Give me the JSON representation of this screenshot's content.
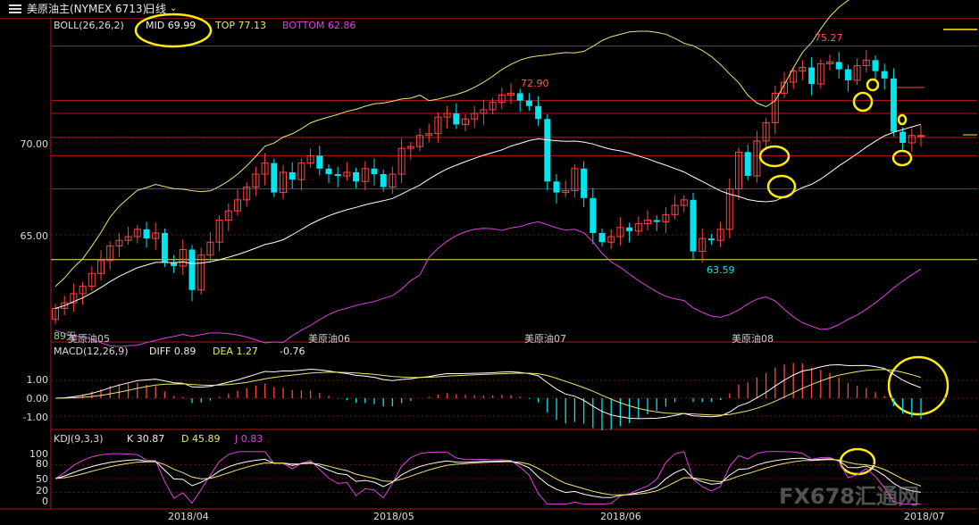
{
  "title_bar": {
    "symbol": "美原油主(NYMEX 6713)",
    "period": "日线"
  },
  "boll": {
    "label": "BOLL(26,26,2)",
    "mid": "MID 69.99",
    "top": "TOP 77.13",
    "bottom": "BOTTOM 62.86"
  },
  "price_axis": [
    "70.00",
    "65.00"
  ],
  "price_annotations": {
    "high": "75.27",
    "mid_high": "72.90",
    "low": "63.59"
  },
  "contract_labels": [
    "美原油05",
    "美原油06",
    "美原油07",
    "美原油08"
  ],
  "corner_text": "89天",
  "macd": {
    "label": "MACD(12,26,9)",
    "diff": "DIFF 0.89",
    "dea": "DEA 1.27",
    "macd": "-0.76",
    "axis": [
      "1.00",
      "0.00",
      "-1.00"
    ]
  },
  "kdj": {
    "label": "KDJ(9,3,3)",
    "k": "K 30.87",
    "d": "D 45.89",
    "j": "J 0.83",
    "axis": [
      "100",
      "80",
      "50",
      "20",
      "0"
    ]
  },
  "x_axis": [
    "2018/04",
    "2018/05",
    "2018/06",
    "2018/07"
  ],
  "watermark": "FX678汇通网",
  "colors": {
    "up": "#ff4444",
    "down": "#00e5ee",
    "boll_top": "#e8e870",
    "boll_mid": "#ffffff",
    "boll_bottom": "#e040e0",
    "grid": "#b01818",
    "highlight": "#ffee00"
  },
  "chart_data": {
    "type": "candlestick",
    "closes": [
      61.0,
      61.3,
      61.8,
      62.2,
      62.9,
      63.6,
      64.4,
      64.7,
      64.9,
      65.3,
      64.8,
      65.1,
      63.5,
      63.3,
      64.2,
      62.0,
      63.9,
      64.6,
      65.8,
      66.3,
      66.9,
      67.6,
      68.3,
      68.9,
      67.3,
      68.4,
      68.0,
      68.9,
      69.3,
      68.6,
      68.3,
      68.2,
      68.4,
      67.9,
      68.6,
      68.3,
      67.6,
      68.3,
      69.7,
      69.8,
      70.4,
      70.5,
      71.4,
      71.6,
      71.0,
      71.3,
      71.6,
      71.8,
      72.2,
      72.6,
      72.7,
      72.3,
      72.0,
      71.3,
      67.9,
      67.3,
      67.4,
      68.6,
      67.0,
      65.1,
      64.6,
      64.9,
      65.4,
      65.2,
      65.6,
      65.8,
      65.7,
      66.1,
      66.6,
      66.9,
      64.1,
      64.8,
      64.7,
      65.3,
      67.5,
      69.5,
      68.2,
      70.1,
      71.1,
      72.7,
      73.3,
      73.9,
      74.1,
      73.2,
      74.3,
      74.4,
      74.0,
      73.4,
      74.2,
      74.5,
      73.9,
      73.5,
      70.6,
      70.0,
      70.4,
      70.4
    ],
    "highlights": [
      "MID 69.99",
      "MACD crossover",
      "KDJ crossover"
    ]
  }
}
